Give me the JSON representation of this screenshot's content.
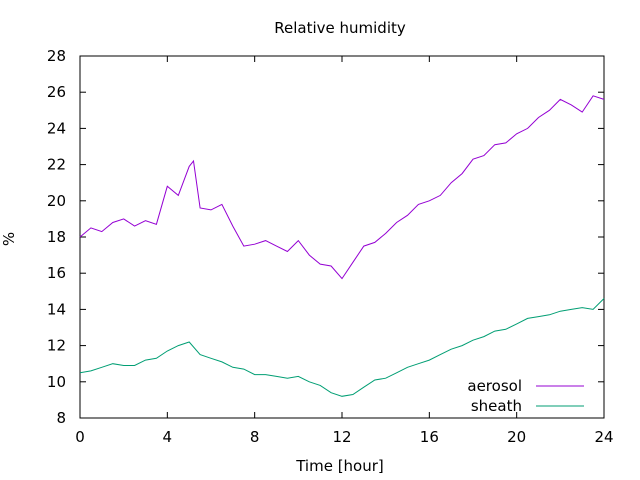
{
  "chart_data": {
    "type": "line",
    "title": "Relative humidity",
    "xlabel": "Time [hour]",
    "ylabel": "%",
    "xlim": [
      0,
      24
    ],
    "ylim": [
      8,
      28
    ],
    "xticks": [
      0,
      4,
      8,
      12,
      16,
      20,
      24
    ],
    "yticks": [
      8,
      10,
      12,
      14,
      16,
      18,
      20,
      22,
      24,
      26,
      28
    ],
    "grid": false,
    "legend_position": "bottom-right",
    "series": [
      {
        "name": "aerosol",
        "color": "#9400d3",
        "x": [
          0,
          0.5,
          1,
          1.5,
          2,
          2.5,
          3,
          3.5,
          4,
          4.5,
          5,
          5.2,
          5.5,
          6,
          6.5,
          7,
          7.5,
          8,
          8.5,
          9,
          9.5,
          10,
          10.5,
          11,
          11.5,
          12,
          12.5,
          13,
          13.5,
          14,
          14.5,
          15,
          15.5,
          16,
          16.5,
          17,
          17.5,
          18,
          18.5,
          19,
          19.5,
          20,
          20.5,
          21,
          21.5,
          22,
          22.5,
          23,
          23.5,
          24
        ],
        "y": [
          18.0,
          18.5,
          18.3,
          18.8,
          19.0,
          18.6,
          18.9,
          18.7,
          20.8,
          20.3,
          21.9,
          22.2,
          19.6,
          19.5,
          19.8,
          18.6,
          17.5,
          17.6,
          17.8,
          17.5,
          17.2,
          17.8,
          17.0,
          16.5,
          16.4,
          15.7,
          16.6,
          17.5,
          17.7,
          18.2,
          18.8,
          19.2,
          19.8,
          20.0,
          20.3,
          21.0,
          21.5,
          22.3,
          22.5,
          23.1,
          23.2,
          23.7,
          24.0,
          24.6,
          25.0,
          25.6,
          25.3,
          24.9,
          25.8,
          25.6
        ]
      },
      {
        "name": "sheath",
        "color": "#009e73",
        "x": [
          0,
          0.5,
          1,
          1.5,
          2,
          2.5,
          3,
          3.5,
          4,
          4.5,
          5,
          5.5,
          6,
          6.5,
          7,
          7.5,
          8,
          8.5,
          9,
          9.5,
          10,
          10.5,
          11,
          11.5,
          12,
          12.5,
          13,
          13.5,
          14,
          14.5,
          15,
          15.5,
          16,
          16.5,
          17,
          17.5,
          18,
          18.5,
          19,
          19.5,
          20,
          20.5,
          21,
          21.5,
          22,
          22.5,
          23,
          23.5,
          24
        ],
        "y": [
          10.5,
          10.6,
          10.8,
          11.0,
          10.9,
          10.9,
          11.2,
          11.3,
          11.7,
          12.0,
          12.2,
          11.5,
          11.3,
          11.1,
          10.8,
          10.7,
          10.4,
          10.4,
          10.3,
          10.2,
          10.3,
          10.0,
          9.8,
          9.4,
          9.2,
          9.3,
          9.7,
          10.1,
          10.2,
          10.5,
          10.8,
          11.0,
          11.2,
          11.5,
          11.8,
          12.0,
          12.3,
          12.5,
          12.8,
          12.9,
          13.2,
          13.5,
          13.6,
          13.7,
          13.9,
          14.0,
          14.1,
          14.0,
          14.6
        ]
      }
    ]
  }
}
